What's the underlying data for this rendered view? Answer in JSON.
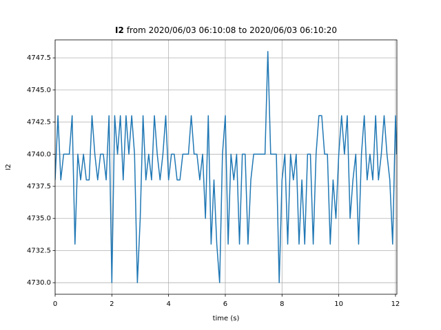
{
  "chart_data": {
    "type": "line",
    "title_parts": [
      "I2",
      "from 2020/06/03 06:10:08 to 2020/06/03 06:10:20"
    ],
    "xlabel": "time (s)",
    "ylabel": "I2",
    "xlim": [
      0,
      12.05
    ],
    "ylim": [
      4729.1,
      4748.9
    ],
    "xticks": [
      0,
      2,
      4,
      6,
      8,
      10,
      12
    ],
    "yticks": [
      {
        "value": 4730,
        "label": "4730.0"
      },
      {
        "value": 4732.5,
        "label": "4732.5"
      },
      {
        "value": 4735,
        "label": "4735.0"
      },
      {
        "value": 4737.5,
        "label": "4737.5"
      },
      {
        "value": 4740,
        "label": "4740.0"
      },
      {
        "value": 4742.5,
        "label": "4742.5"
      },
      {
        "value": 4745,
        "label": "4745.0"
      },
      {
        "value": 4747.5,
        "label": "4747.5"
      }
    ],
    "grid": true,
    "x": [
      0,
      0.1,
      0.2,
      0.3,
      0.4,
      0.5,
      0.6,
      0.7,
      0.8,
      0.9,
      1,
      1.1,
      1.2,
      1.3,
      1.4,
      1.5,
      1.6,
      1.7,
      1.8,
      1.9,
      2,
      2.1,
      2.2,
      2.3,
      2.4,
      2.5,
      2.6,
      2.7,
      2.8,
      2.9,
      3,
      3.1,
      3.2,
      3.3,
      3.4,
      3.5,
      3.6,
      3.7,
      3.8,
      3.9,
      4,
      4.1,
      4.2,
      4.3,
      4.4,
      4.5,
      4.6,
      4.7,
      4.8,
      4.9,
      5,
      5.1,
      5.2,
      5.3,
      5.4,
      5.5,
      5.6,
      5.7,
      5.8,
      5.9,
      6,
      6.1,
      6.2,
      6.3,
      6.4,
      6.5,
      6.6,
      6.7,
      6.8,
      6.9,
      7,
      7.1,
      7.2,
      7.3,
      7.4,
      7.5,
      7.6,
      7.7,
      7.8,
      7.9,
      8,
      8.1,
      8.2,
      8.3,
      8.4,
      8.5,
      8.6,
      8.7,
      8.8,
      8.9,
      9,
      9.1,
      9.2,
      9.3,
      9.4,
      9.5,
      9.6,
      9.7,
      9.8,
      9.9,
      10,
      10.1,
      10.2,
      10.3,
      10.4,
      10.5,
      10.6,
      10.7,
      10.8,
      10.9,
      11,
      11.1,
      11.2,
      11.3,
      11.4,
      11.5,
      11.6,
      11.7,
      11.8,
      11.9,
      12,
      12.04
    ],
    "series": [
      {
        "name": "I2",
        "color": "#1f77b4",
        "values": [
          4738,
          4743,
          4738,
          4740,
          4740,
          4740,
          4743,
          4733,
          4740,
          4738,
          4740,
          4738,
          4738,
          4743,
          4740,
          4738,
          4740,
          4740,
          4738,
          4743,
          4730,
          4743,
          4740,
          4743,
          4738,
          4743,
          4740,
          4743,
          4740,
          4730,
          4735,
          4743,
          4738,
          4740,
          4738,
          4743,
          4740,
          4738,
          4740,
          4743,
          4738,
          4740,
          4740,
          4738,
          4738,
          4740,
          4740,
          4740,
          4743,
          4740,
          4740,
          4738,
          4740,
          4735,
          4743,
          4733,
          4738,
          4733,
          4730,
          4740,
          4743,
          4733,
          4740,
          4738,
          4740,
          4733,
          4740,
          4740,
          4733,
          4738,
          4740,
          4740,
          4740,
          4740,
          4740,
          4748,
          4740,
          4740,
          4740,
          4730,
          4738,
          4740,
          4733,
          4740,
          4738,
          4740,
          4733,
          4738,
          4733,
          4740,
          4740,
          4733,
          4740,
          4743,
          4743,
          4740,
          4740,
          4733,
          4738,
          4735,
          4740,
          4743,
          4740,
          4743,
          4735,
          4738,
          4740,
          4733,
          4740,
          4743,
          4738,
          4740,
          4738,
          4743,
          4738,
          4740,
          4743,
          4740,
          4738,
          4733,
          4743,
          4740
        ]
      }
    ]
  }
}
